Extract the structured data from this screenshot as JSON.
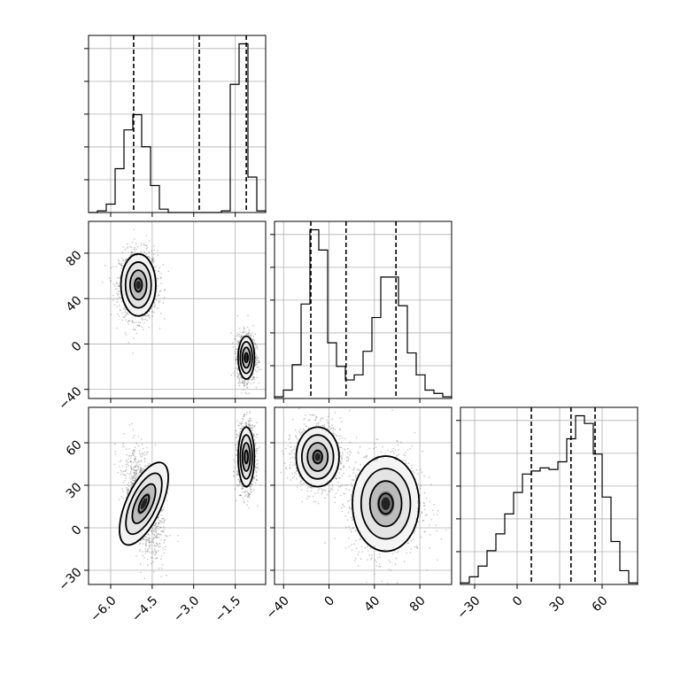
{
  "chart_data": {
    "type": "corner",
    "grid": true,
    "parameters": [
      {
        "ticks": [
          -6.0,
          -4.5,
          -3.0,
          -1.5
        ],
        "tick_labels": [
          "−6.0",
          "−4.5",
          "−3.0",
          "−1.5"
        ],
        "range": [
          -6.8,
          -0.4
        ],
        "quantiles": [
          -5.17,
          -2.8,
          -1.1
        ],
        "histogram": {
          "edges": [
            -6.8,
            -6.48,
            -6.16,
            -5.84,
            -5.52,
            -5.2,
            -4.88,
            -4.56,
            -4.24,
            -3.92,
            -3.6,
            -3.28,
            -2.96,
            -2.64,
            -2.32,
            -2.0,
            -1.68,
            -1.36,
            -1.04,
            -0.72,
            -0.4
          ],
          "counts": [
            0,
            0.01,
            0.05,
            0.26,
            0.49,
            0.58,
            0.39,
            0.16,
            0.02,
            0,
            0,
            0,
            0,
            0,
            0,
            0.01,
            0.76,
            1.0,
            0.21,
            0.01
          ]
        }
      },
      {
        "ticks": [
          -40,
          0,
          40,
          80
        ],
        "tick_labels": [
          "−40",
          "0",
          "40",
          "80"
        ],
        "range": [
          -48,
          108
        ],
        "quantiles": [
          -16,
          15,
          59
        ],
        "histogram": {
          "edges": [
            -48,
            -40.2,
            -32.4,
            -24.6,
            -16.8,
            -9,
            -1.2,
            6.6,
            14.4,
            22.2,
            30,
            37.8,
            45.6,
            53.4,
            61.2,
            69,
            76.8,
            84.6,
            92.4,
            100.2,
            108
          ],
          "counts": [
            0.01,
            0.05,
            0.2,
            0.56,
            1.0,
            0.88,
            0.33,
            0.19,
            0.11,
            0.14,
            0.28,
            0.48,
            0.72,
            0.72,
            0.55,
            0.27,
            0.14,
            0.05,
            0.03,
            0.01
          ]
        }
      },
      {
        "ticks": [
          -30,
          0,
          30,
          60
        ],
        "tick_labels": [
          "−30",
          "0",
          "30",
          "60"
        ],
        "range": [
          -40,
          85
        ],
        "quantiles": [
          10,
          38,
          55
        ],
        "histogram": {
          "edges": [
            -40,
            -33.75,
            -27.5,
            -21.25,
            -15,
            -8.75,
            -2.5,
            3.75,
            10,
            16.25,
            22.5,
            28.75,
            35,
            41.25,
            47.5,
            53.75,
            60,
            66.25,
            72.5,
            78.75,
            85
          ],
          "counts": [
            0.01,
            0.05,
            0.12,
            0.22,
            0.33,
            0.46,
            0.6,
            0.72,
            0.74,
            0.76,
            0.75,
            0.8,
            0.95,
            1.1,
            1.05,
            0.85,
            0.57,
            0.28,
            0.09,
            0.01
          ]
        }
      }
    ],
    "pairs": [
      {
        "x_param": 0,
        "y_param": 1,
        "modes": [
          {
            "cx": -5.0,
            "cy": 52,
            "sx": 0.3,
            "sy": 13
          },
          {
            "cx": -1.1,
            "cy": -12,
            "sx": 0.14,
            "sy": 9
          }
        ]
      },
      {
        "x_param": 0,
        "y_param": 2,
        "modes": [
          {
            "cx": -1.1,
            "cy": 50,
            "sx": 0.14,
            "sy": 10
          },
          {
            "cx": -4.8,
            "cy": 17,
            "sx": 0.3,
            "sy": 15,
            "rho": -0.45
          }
        ]
      },
      {
        "x_param": 1,
        "y_param": 2,
        "modes": [
          {
            "cx": -10,
            "cy": 50,
            "sx": 9,
            "sy": 10
          },
          {
            "cx": 50,
            "cy": 17,
            "sx": 14,
            "sy": 16
          }
        ]
      }
    ]
  }
}
